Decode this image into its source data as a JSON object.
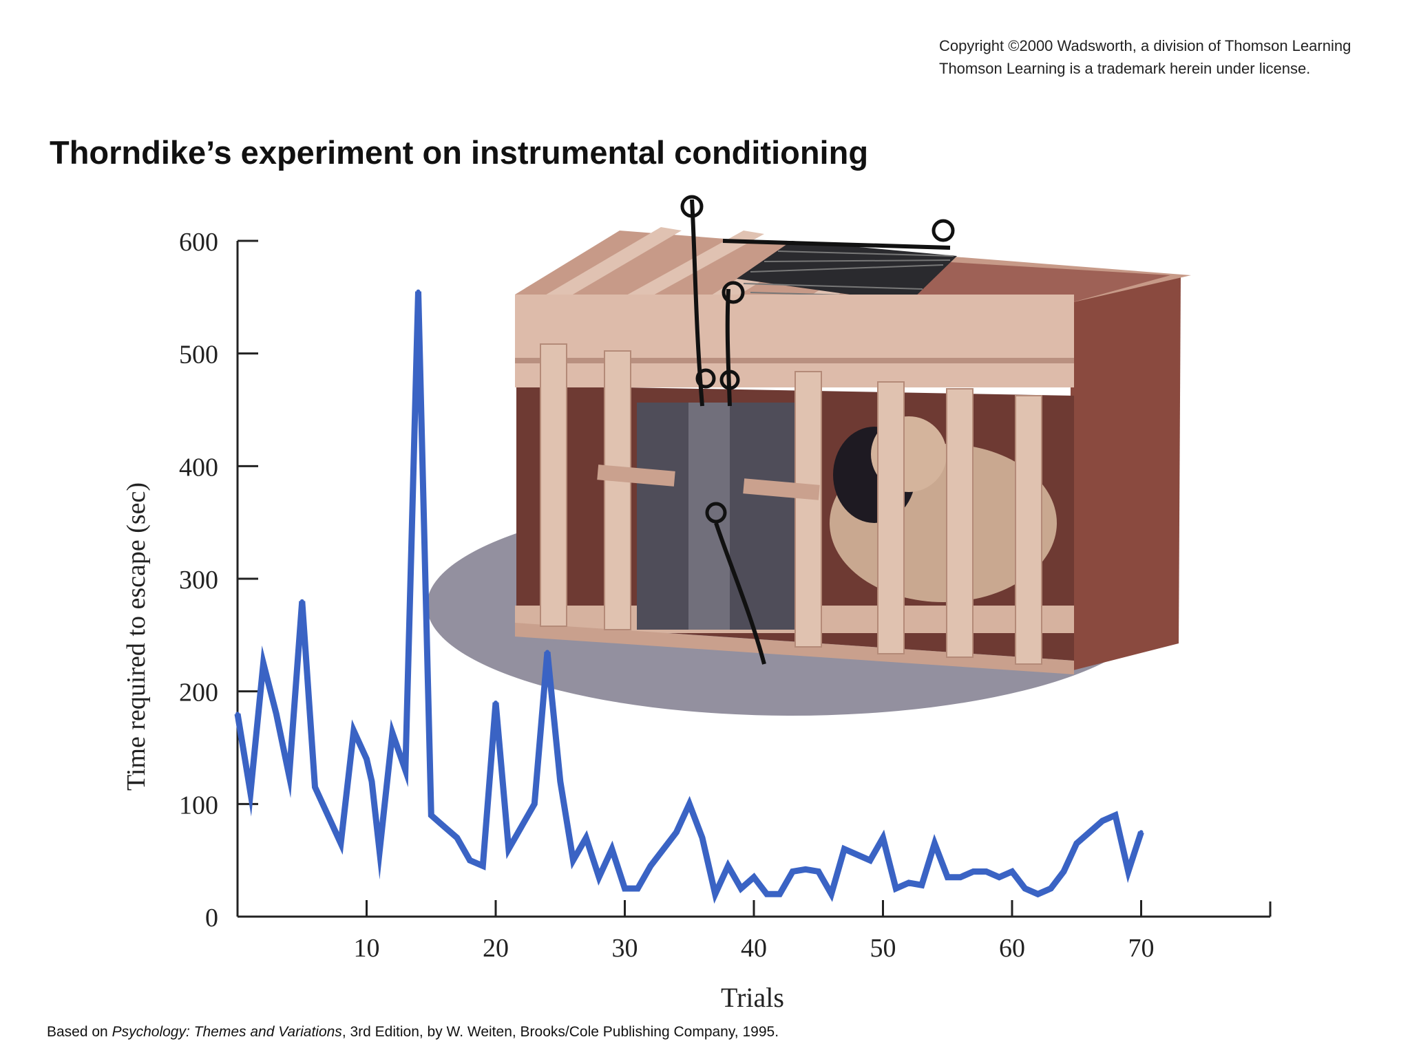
{
  "copyright": {
    "line1": "Copyright ©2000 Wadsworth, a division of Thomson Learning",
    "line2": "Thomson Learning is a trademark herein under license."
  },
  "source": {
    "prefix": "Based on ",
    "book": "Psychology: Themes and Variations",
    "suffix": ", 3rd Edition, by W. Weiten, Brooks/Cole Publishing Company, 1995."
  },
  "colors": {
    "line": "#3a63c4",
    "axis": "#222222",
    "box_wood": "#d9b8a6",
    "box_interior": "#7a4a42",
    "box_door": "#5b5a66"
  },
  "illustration": {
    "icon": "puzzle-box-with-cat-illustration"
  },
  "chart_data": {
    "type": "line",
    "title": "Thorndike’s experiment on instrumental conditioning",
    "xlabel": "Trials",
    "ylabel": "Time required to escape (sec)",
    "xlim": [
      0,
      80
    ],
    "ylim": [
      0,
      600
    ],
    "xticks": [
      10,
      20,
      30,
      40,
      50,
      60,
      70
    ],
    "yticks": [
      0,
      100,
      200,
      300,
      400,
      500,
      600
    ],
    "x": [
      0,
      1,
      2,
      3,
      4,
      5,
      6,
      7,
      8,
      9,
      10,
      10.4,
      11,
      12,
      13,
      14,
      15,
      16,
      17,
      18,
      19,
      20,
      21,
      22,
      23,
      24,
      25,
      26,
      27,
      28,
      29,
      30,
      31,
      32,
      33,
      34,
      35,
      36,
      37,
      38,
      39,
      40,
      41,
      42,
      43,
      44,
      45,
      46,
      47,
      48,
      49,
      50,
      51,
      52,
      53,
      54,
      55,
      56,
      57,
      58,
      59,
      60,
      61,
      62,
      63,
      64,
      65,
      66,
      67,
      68,
      69,
      70
    ],
    "values": [
      180,
      110,
      225,
      180,
      125,
      280,
      115,
      90,
      65,
      165,
      140,
      120,
      58,
      163,
      130,
      555,
      90,
      80,
      70,
      50,
      45,
      190,
      60,
      80,
      100,
      235,
      120,
      50,
      70,
      35,
      60,
      25,
      25,
      45,
      60,
      75,
      100,
      70,
      20,
      45,
      25,
      35,
      20,
      20,
      40,
      42,
      40,
      20,
      60,
      55,
      50,
      70,
      25,
      30,
      28,
      65,
      35,
      35,
      40,
      40,
      35,
      40,
      25,
      20,
      25,
      40,
      65,
      75,
      85,
      90,
      40,
      75
    ]
  }
}
